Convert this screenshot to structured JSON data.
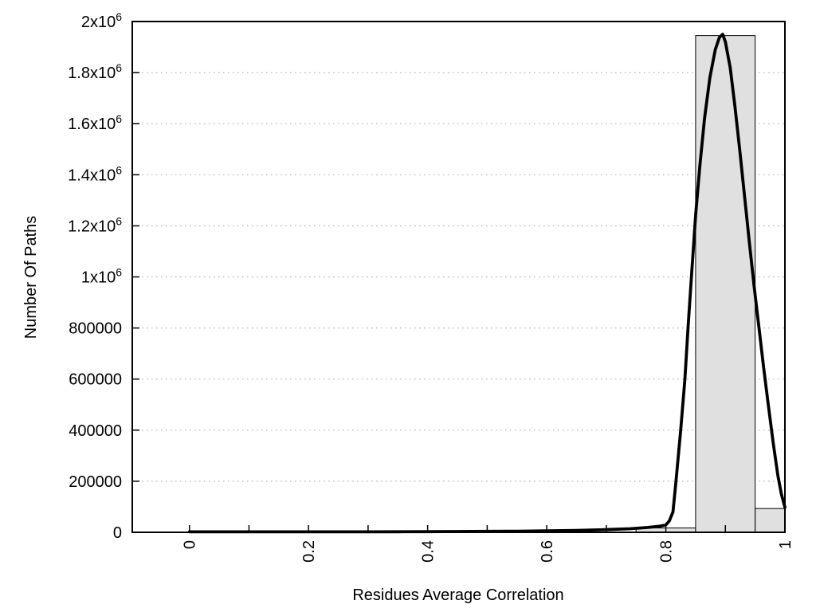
{
  "figure": {
    "background": "#ffffff",
    "axis_color": "#000000",
    "grid_color": "#b4b4b4",
    "bar_fill": "#e0e0e0",
    "bar_stroke": "#000000",
    "curve_color": "#000000"
  },
  "chart_data": {
    "type": "bar",
    "subtype": "histogram_with_fit_curve",
    "title": "",
    "xlabel": "Residues Average Correlation",
    "ylabel": "Number Of Paths",
    "xlim": [
      -0.096,
      1.0
    ],
    "ylim": [
      0,
      2000000
    ],
    "grid": "horizontal-dotted",
    "legend_position": "none",
    "x_minor_tick_step": 0.1,
    "x_major_ticks": [
      {
        "value": 0,
        "label": "0"
      },
      {
        "value": 0.2,
        "label": "0.2"
      },
      {
        "value": 0.4,
        "label": "0.4"
      },
      {
        "value": 0.6,
        "label": "0.6"
      },
      {
        "value": 0.8,
        "label": "0.8"
      },
      {
        "value": 1,
        "label": "1"
      }
    ],
    "y_ticks": [
      {
        "value": 0,
        "label": "0"
      },
      {
        "value": 200000,
        "label": "200000"
      },
      {
        "value": 400000,
        "label": "400000"
      },
      {
        "value": 600000,
        "label": "600000"
      },
      {
        "value": 800000,
        "label": "800000"
      },
      {
        "value": 1000000,
        "label": "1x10^6"
      },
      {
        "value": 1200000,
        "label": "1.2x10^6"
      },
      {
        "value": 1400000,
        "label": "1.4x10^6"
      },
      {
        "value": 1600000,
        "label": "1.6x10^6"
      },
      {
        "value": 1800000,
        "label": "1.8x10^6"
      },
      {
        "value": 2000000,
        "label": "2x10^6"
      }
    ],
    "bars": [
      {
        "x_start": 0.75,
        "x_end": 0.85,
        "count": 17000
      },
      {
        "x_start": 0.85,
        "x_end": 0.95,
        "count": 1945000
      },
      {
        "x_start": 0.95,
        "x_end": 1.0,
        "count": 93000
      }
    ],
    "fit_curve": {
      "shape": "bell",
      "peak_x": 0.8955,
      "peak_y": 1950000,
      "points": [
        [
          0.0,
          2000
        ],
        [
          0.05,
          2000
        ],
        [
          0.1,
          2000
        ],
        [
          0.15,
          2000
        ],
        [
          0.2,
          2000
        ],
        [
          0.25,
          2000
        ],
        [
          0.3,
          2000
        ],
        [
          0.35,
          2300
        ],
        [
          0.4,
          2600
        ],
        [
          0.45,
          3000
        ],
        [
          0.5,
          3600
        ],
        [
          0.55,
          4500
        ],
        [
          0.6,
          5800
        ],
        [
          0.65,
          7500
        ],
        [
          0.7,
          10500
        ],
        [
          0.74,
          14000
        ],
        [
          0.77,
          19000
        ],
        [
          0.79,
          24000
        ],
        [
          0.8,
          29000
        ],
        [
          0.806,
          45000
        ],
        [
          0.812,
          80000
        ],
        [
          0.817,
          200000
        ],
        [
          0.825,
          400000
        ],
        [
          0.832,
          600000
        ],
        [
          0.8375,
          810000
        ],
        [
          0.8435,
          1020000
        ],
        [
          0.85,
          1240000
        ],
        [
          0.857,
          1430000
        ],
        [
          0.865,
          1620000
        ],
        [
          0.874,
          1780000
        ],
        [
          0.883,
          1890000
        ],
        [
          0.89,
          1938000
        ],
        [
          0.8955,
          1950000
        ],
        [
          0.9,
          1920000
        ],
        [
          0.908,
          1820000
        ],
        [
          0.916,
          1670000
        ],
        [
          0.924,
          1500000
        ],
        [
          0.932,
          1320000
        ],
        [
          0.94,
          1140000
        ],
        [
          0.948,
          970000
        ],
        [
          0.956,
          810000
        ],
        [
          0.964,
          650000
        ],
        [
          0.972,
          500000
        ],
        [
          0.98,
          355000
        ],
        [
          0.988,
          225000
        ],
        [
          0.994,
          150000
        ],
        [
          1.0,
          98000
        ]
      ]
    }
  }
}
